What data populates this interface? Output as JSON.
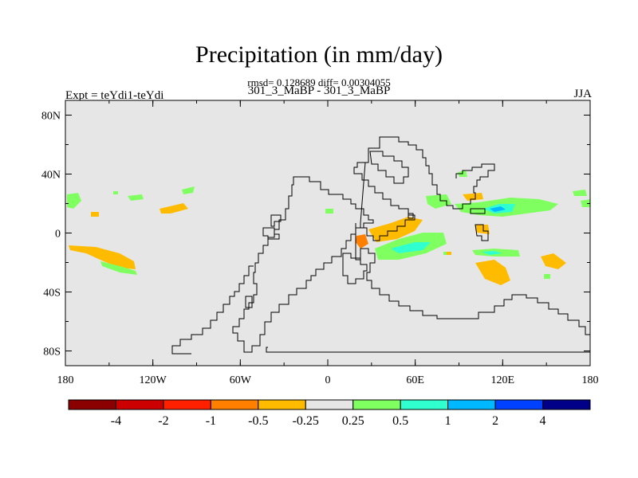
{
  "title": "Precipitation (in mm/day)",
  "stats": "rmsd= 0.128689 diff= 0.00304055",
  "subtitle": "301_3_MaBP - 301_3_MaBP",
  "left_label": "Expt = teYdi1-teYdi",
  "right_label": "JJA",
  "map": {
    "lon_ticks": [
      "180",
      "120W",
      "60W",
      "0",
      "60E",
      "120E",
      "180"
    ],
    "lat_ticks": [
      "80N",
      "40N",
      "0",
      "40S",
      "80S"
    ],
    "background_color": "#e6e6e6"
  },
  "colorbar": {
    "colors": [
      "#8b0000",
      "#cd0000",
      "#ff2000",
      "#ff7f00",
      "#ffbb00",
      "#e6e6e6",
      "#80ff60",
      "#30ffd0",
      "#00b8ff",
      "#0040ff",
      "#000088"
    ],
    "labels": [
      "-4",
      "-2",
      "-1",
      "-0.5",
      "-0.25",
      "0.25",
      "0.5",
      "1",
      "2",
      "4"
    ]
  }
}
